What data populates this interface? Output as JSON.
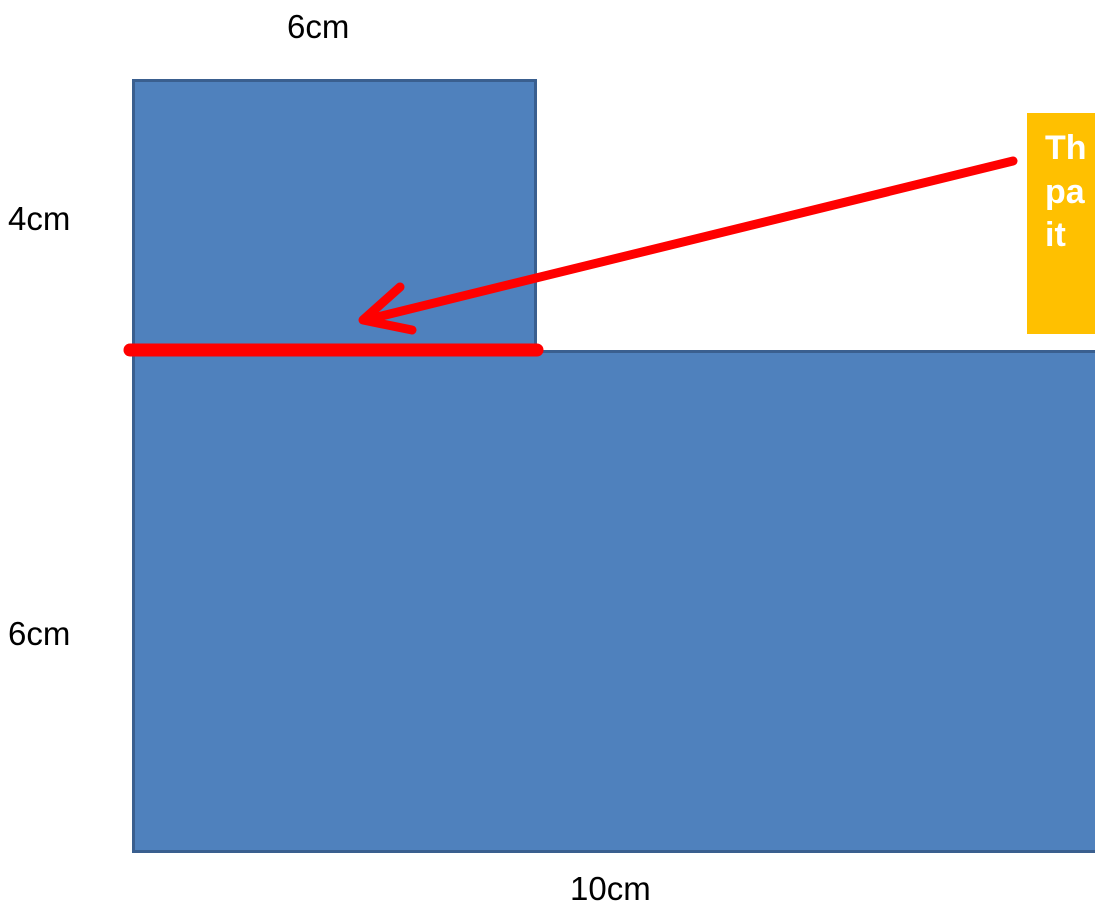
{
  "colors": {
    "shape_fill": "#4f81bd",
    "shape_border": "#3a5f8f",
    "highlight": "#ff0000",
    "callout_fill": "#ffc000",
    "callout_text": "#ffffff"
  },
  "labels": {
    "top_width": "6cm",
    "top_height": "4cm",
    "bottom_height": "6cm",
    "bottom_width": "10cm"
  },
  "callout": {
    "lines": [
      "Th",
      "pa",
      "it"
    ]
  }
}
